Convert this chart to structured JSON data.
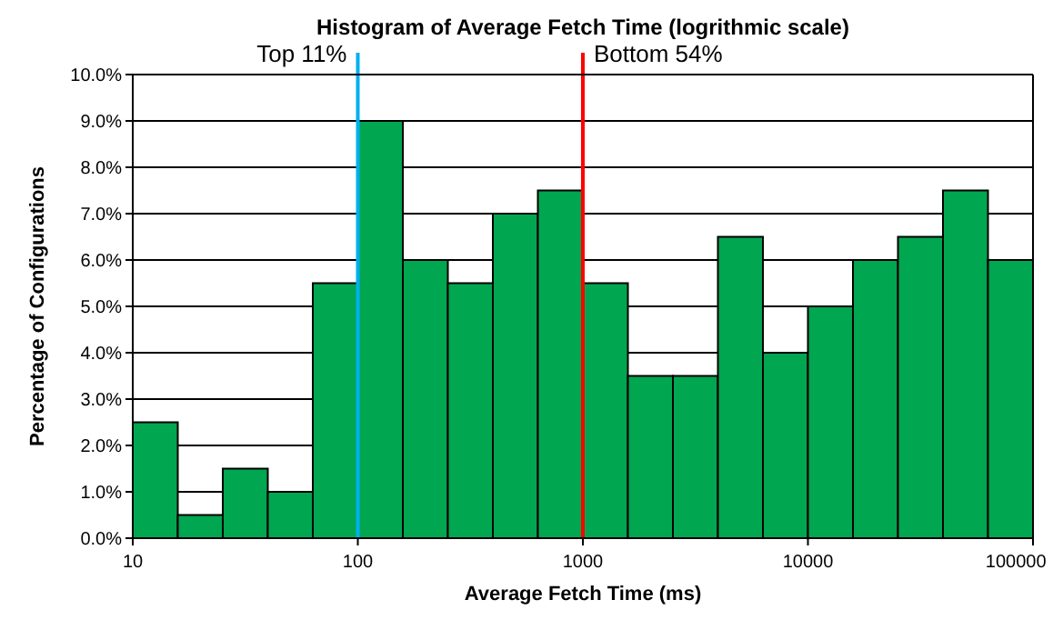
{
  "chart_data": {
    "type": "histogram",
    "title": "Histogram of Average Fetch Time (logrithmic scale)",
    "xlabel": "Average Fetch Time (ms)",
    "ylabel": "Percentage of Configurations",
    "bins": [
      10,
      15.85,
      25.12,
      39.81,
      63.1,
      100,
      158.5,
      251.2,
      398.1,
      631,
      1000,
      1585,
      2512,
      3981,
      6310,
      10000,
      15850,
      25120,
      39810,
      63100,
      100000
    ],
    "values": [
      2.5,
      0.5,
      1.5,
      1.0,
      5.5,
      9.0,
      6.0,
      5.5,
      7.0,
      7.5,
      5.5,
      3.5,
      3.5,
      6.5,
      4.0,
      5.0,
      6.0,
      6.5,
      7.5,
      6.0
    ],
    "color": "#00a650",
    "log": "x",
    "grid": "y",
    "legend": false,
    "xlim": [
      10,
      100000
    ],
    "xticks": [
      10,
      100,
      1000,
      10000,
      100000
    ],
    "ylim": [
      0,
      10
    ],
    "yticks": [
      {
        "value": 0,
        "label": "0.0%"
      },
      {
        "value": 1,
        "label": "1.0%"
      },
      {
        "value": 2,
        "label": "2.0%"
      },
      {
        "value": 3,
        "label": "3.0%"
      },
      {
        "value": 4,
        "label": "4.0%"
      },
      {
        "value": 5,
        "label": "5.0%"
      },
      {
        "value": 6,
        "label": "6.0%"
      },
      {
        "value": 7,
        "label": "7.0%"
      },
      {
        "value": 8,
        "label": "8.0%"
      },
      {
        "value": 9,
        "label": "9.0%"
      },
      {
        "value": 10,
        "label": "10.0%"
      }
    ],
    "ref_lines": [
      {
        "axis": "x",
        "value": 100,
        "label": "Top 11%",
        "color": "#00b0f0"
      },
      {
        "axis": "x",
        "value": 1000,
        "label": "Bottom 54%",
        "color": "#ff0000"
      }
    ]
  }
}
